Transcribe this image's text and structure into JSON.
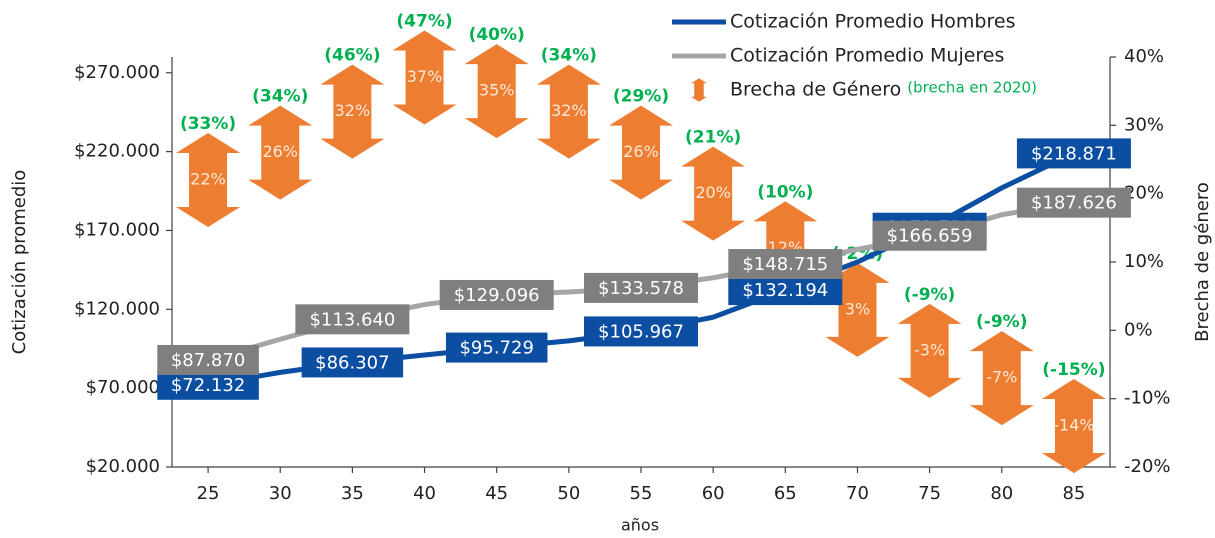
{
  "chart_data": {
    "type": "line",
    "x_label": "años",
    "y_label": "Cotización promedio",
    "y2_label": "Brecha de género",
    "x": [
      25,
      30,
      35,
      40,
      45,
      50,
      55,
      60,
      65,
      70,
      75,
      80,
      85
    ],
    "xlim": [
      22.5,
      87.5
    ],
    "xticks": [
      25,
      30,
      35,
      40,
      45,
      50,
      55,
      60,
      65,
      70,
      75,
      80,
      85
    ],
    "ylim": [
      20000,
      280000
    ],
    "yticks": [
      {
        "value": 20000,
        "label": "$20.000"
      },
      {
        "value": 70000,
        "label": "$70.000"
      },
      {
        "value": 120000,
        "label": "$120.000"
      },
      {
        "value": 170000,
        "label": "$170.000"
      },
      {
        "value": 220000,
        "label": "$220.000"
      },
      {
        "value": 270000,
        "label": "$270.000"
      }
    ],
    "y2lim": [
      -20,
      40
    ],
    "y2ticks": [
      {
        "value": -20,
        "label": "-20%"
      },
      {
        "value": -10,
        "label": "-10%"
      },
      {
        "value": 0,
        "label": "0%"
      },
      {
        "value": 10,
        "label": "10%"
      },
      {
        "value": 20,
        "label": "20%"
      },
      {
        "value": 30,
        "label": "30%"
      },
      {
        "value": 40,
        "label": "40%"
      }
    ],
    "series": [
      {
        "name": "Cotización Promedio Hombres",
        "color": "#0b4ea2",
        "values": [
          72132,
          80000,
          86307,
          91000,
          95729,
          100000,
          105967,
          115000,
          132194,
          150000,
          171726,
          197000,
          218871
        ],
        "value_labels": [
          "$72.132",
          null,
          "$86.307",
          null,
          "$95.729",
          null,
          "$105.967",
          null,
          "$132.194",
          null,
          "$171.726",
          null,
          "$218.871"
        ]
      },
      {
        "name": "Cotización Promedio Mujeres",
        "color": "#a6a6a6",
        "label_color": "#7f7f7f",
        "values": [
          87870,
          101000,
          113640,
          123000,
          129096,
          131000,
          133578,
          140000,
          148715,
          158000,
          166659,
          180000,
          187626
        ],
        "value_labels": [
          "$87.870",
          null,
          "$113.640",
          null,
          "$129.096",
          null,
          "$133.578",
          null,
          "$148.715",
          null,
          "$166.659",
          null,
          "$187.626"
        ]
      },
      {
        "name": "Brecha de Género",
        "color": "#ed7d31",
        "axis": "y2",
        "values": [
          22,
          26,
          32,
          37,
          35,
          32,
          26,
          20,
          12,
          3,
          -3,
          -7,
          -14
        ],
        "value_labels": [
          "22%",
          "26%",
          "32%",
          "37%",
          "35%",
          "32%",
          "26%",
          "20%",
          "12%",
          "3%",
          "-3%",
          "-7%",
          "-14%"
        ]
      }
    ],
    "gap_2020": {
      "name": "(brecha en 2020)",
      "color": "#00b050",
      "values": [
        33,
        34,
        46,
        47,
        40,
        34,
        29,
        21,
        10,
        -2,
        -9,
        -9,
        -15
      ],
      "value_labels": [
        "(33%)",
        "(34%)",
        "(46%)",
        "(47%)",
        "(40%)",
        "(34%)",
        "(29%)",
        "(21%)",
        "(10%)",
        "(-2%)",
        "(-9%)",
        "(-9%)",
        "(-15%)"
      ]
    }
  }
}
